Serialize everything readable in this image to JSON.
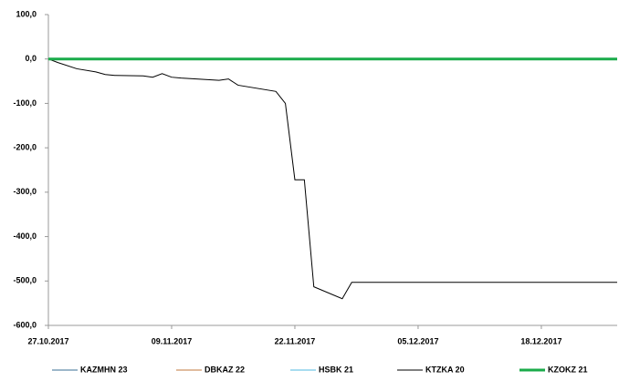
{
  "chart_data": {
    "type": "line",
    "x": [
      "27.10.2017",
      "28.10.2017",
      "30.10.2017",
      "01.11.2017",
      "02.11.2017",
      "03.11.2017",
      "06.11.2017",
      "07.11.2017",
      "08.11.2017",
      "09.11.2017",
      "10.11.2017",
      "14.11.2017",
      "15.11.2017",
      "16.11.2017",
      "20.11.2017",
      "21.11.2017",
      "22.11.2017",
      "23.11.2017",
      "24.11.2017",
      "27.11.2017",
      "28.11.2017",
      "26.12.2017"
    ],
    "series": [
      {
        "name": "KAZMHN 23",
        "color": "#3a6f96",
        "width": 1,
        "values": [
          0,
          0,
          0,
          0,
          0,
          0,
          0,
          0,
          0,
          0,
          0,
          0,
          0,
          0,
          0,
          0,
          0,
          0,
          0,
          0,
          0,
          0
        ]
      },
      {
        "name": "DBKAZ 22",
        "color": "#c07a3c",
        "width": 1,
        "values": [
          0,
          0,
          0,
          0,
          0,
          0,
          0,
          0,
          0,
          0,
          0,
          0,
          0,
          0,
          0,
          0,
          0,
          0,
          0,
          0,
          0,
          0
        ]
      },
      {
        "name": "HSBK 21",
        "color": "#4fb8e0",
        "width": 1,
        "values": [
          0,
          0,
          0,
          0,
          0,
          0,
          0,
          0,
          0,
          0,
          0,
          0,
          0,
          0,
          0,
          0,
          0,
          0,
          0,
          0,
          0,
          0
        ]
      },
      {
        "name": "KTZKA 20",
        "color": "#000000",
        "width": 1,
        "values": [
          0,
          -8,
          -22,
          -29,
          -35,
          -37,
          -38,
          -41,
          -33,
          -41,
          -43,
          -48,
          -45,
          -59,
          -73,
          -100,
          -272,
          -272,
          -513,
          -540,
          -503,
          -503
        ]
      },
      {
        "name": "KZOKZ 21",
        "color": "#1aab4a",
        "width": 3,
        "values": [
          0,
          0,
          0,
          0,
          0,
          0,
          0,
          0,
          0,
          0,
          0,
          0,
          0,
          0,
          0,
          0,
          0,
          0,
          0,
          0,
          0,
          0
        ]
      }
    ],
    "xlim": [
      "27.10.2017",
      "26.12.2017"
    ],
    "xticks": [
      "27.10.2017",
      "09.11.2017",
      "22.11.2017",
      "05.12.2017",
      "18.12.2017"
    ],
    "ylim": [
      -600,
      100
    ],
    "yticks": [
      {
        "value": 100,
        "label": "100,0"
      },
      {
        "value": 0,
        "label": "0,0"
      },
      {
        "value": -100,
        "label": "-100,0"
      },
      {
        "value": -200,
        "label": "-200,0"
      },
      {
        "value": -300,
        "label": "-300,0"
      },
      {
        "value": -400,
        "label": "-400,0"
      },
      {
        "value": -500,
        "label": "-500,0"
      },
      {
        "value": -600,
        "label": "-600,0"
      }
    ],
    "legend": "bottom"
  }
}
